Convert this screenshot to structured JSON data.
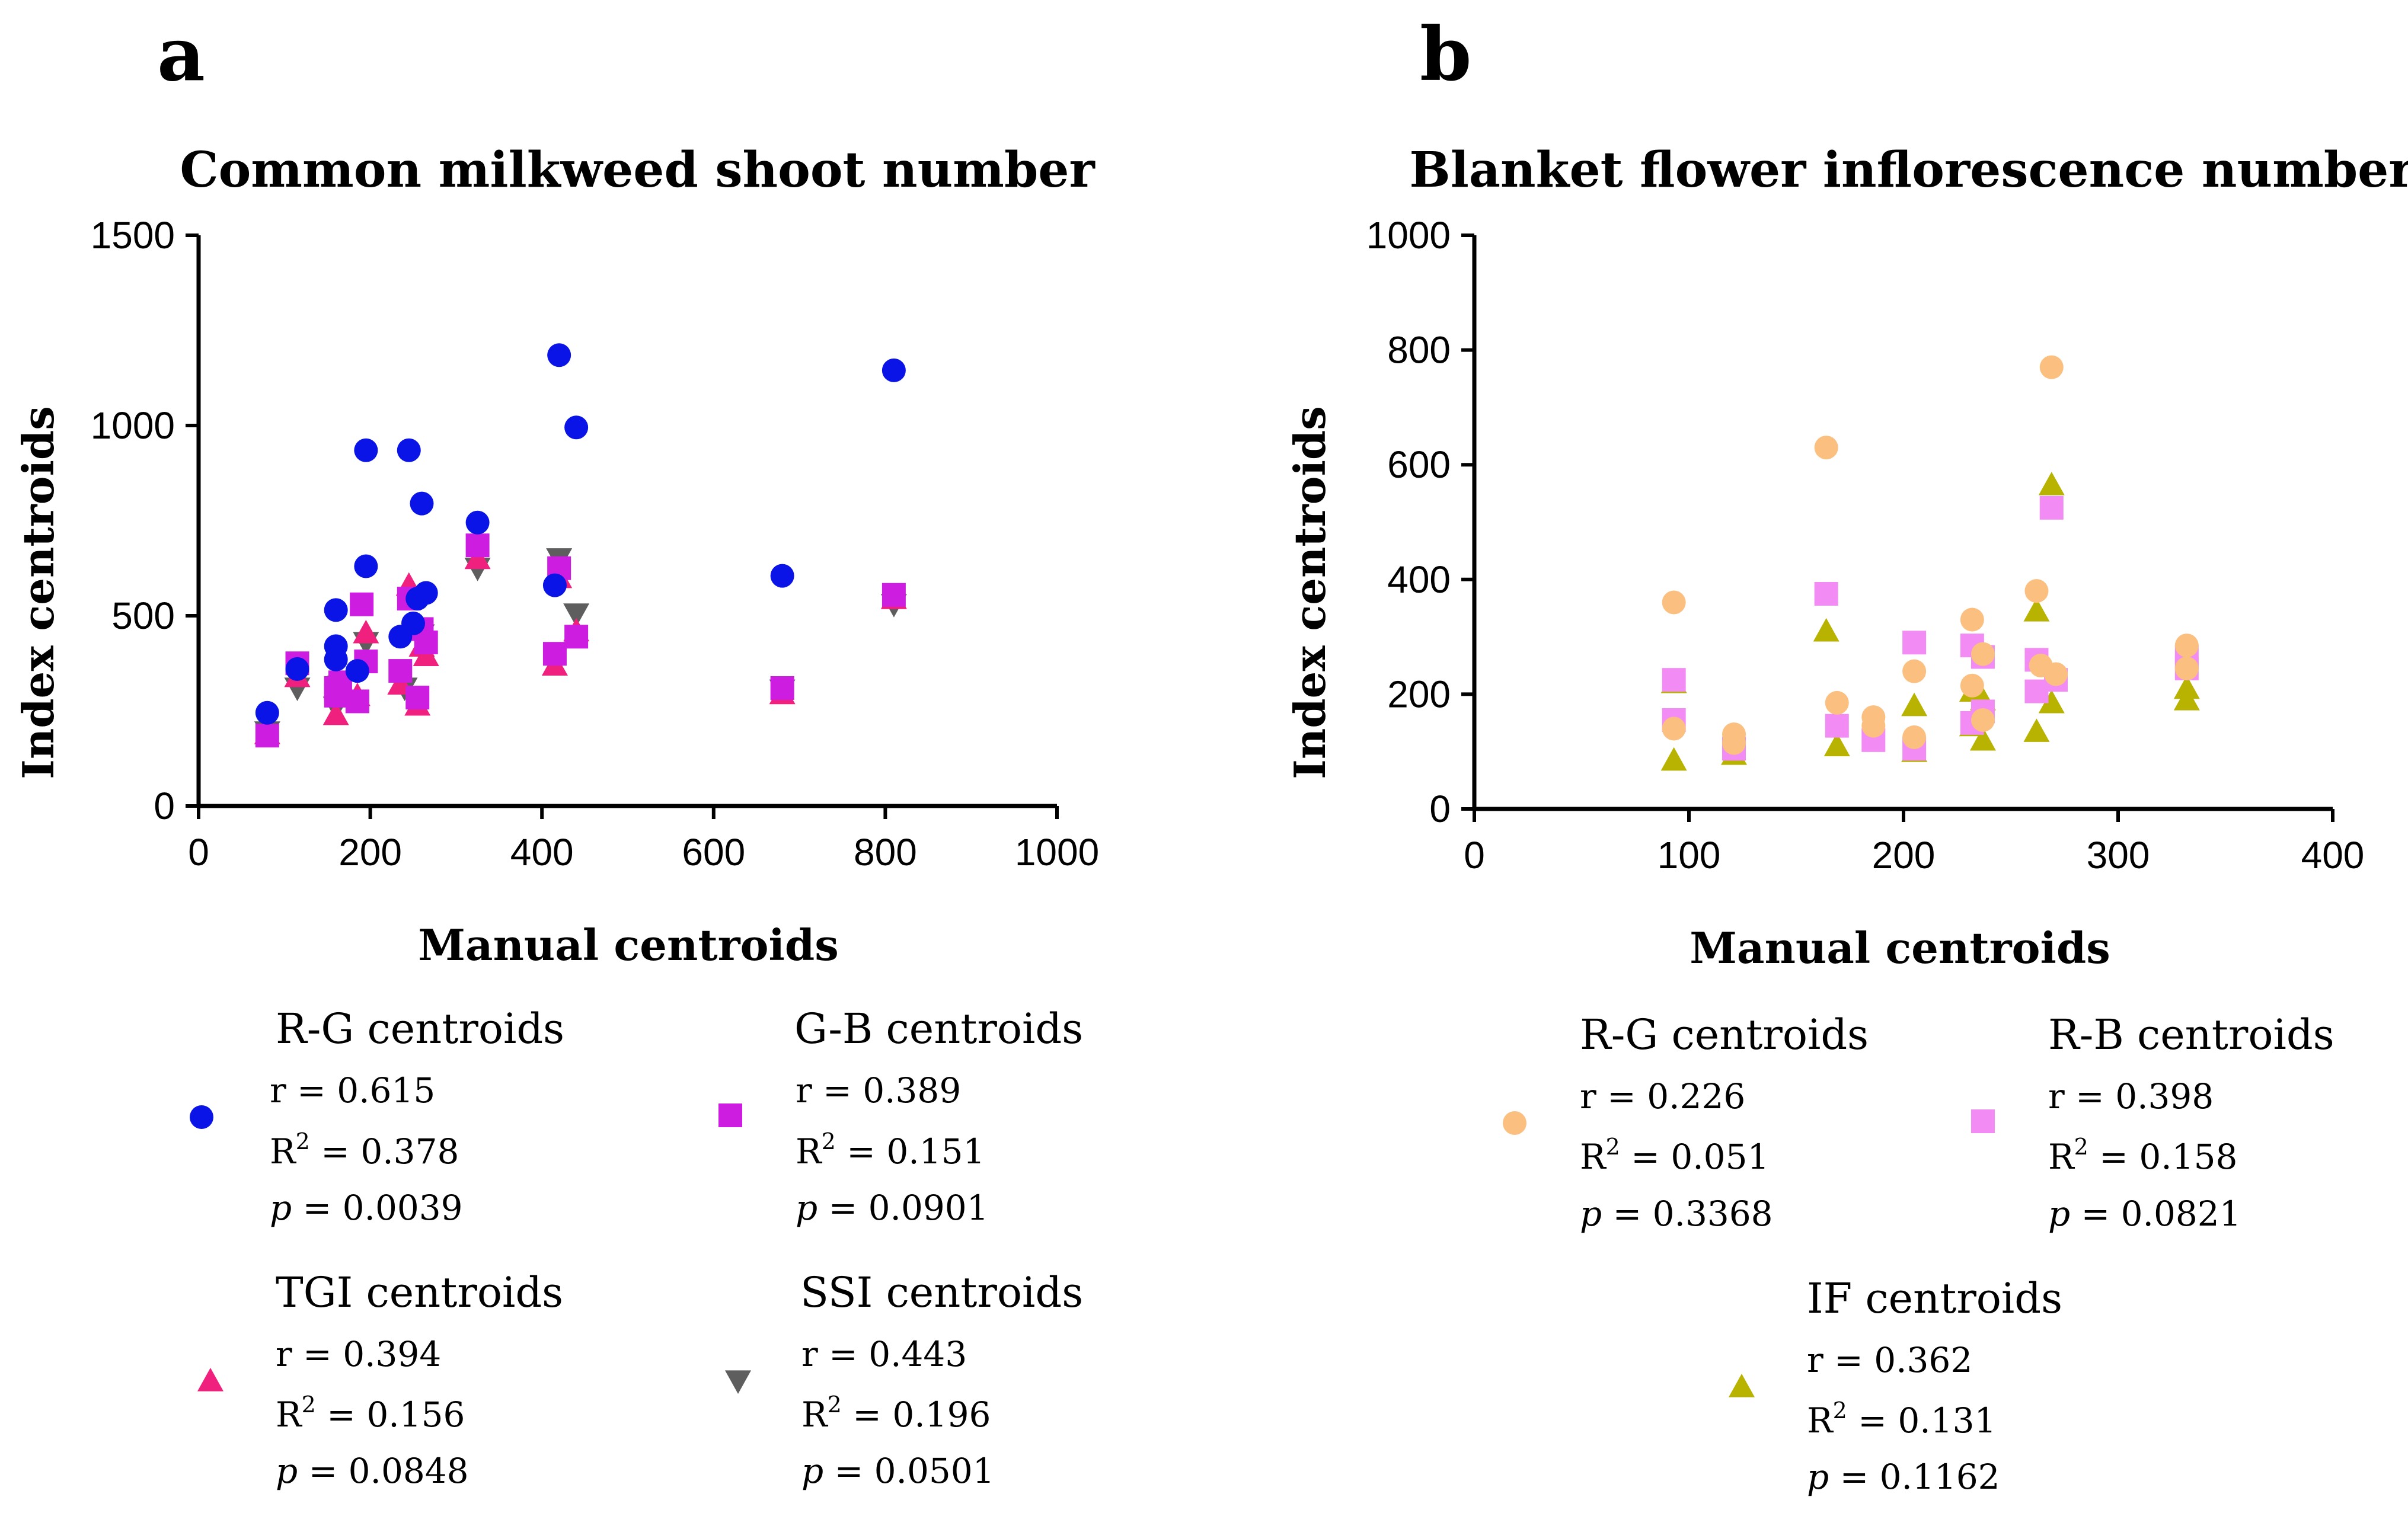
{
  "figure": {
    "panels": [
      "a",
      "b"
    ]
  },
  "chart_data": [
    {
      "panel": "a",
      "type": "scatter",
      "title": "Common milkweed shoot number",
      "xlabel": "Manual centroids",
      "ylabel": "Index centroids",
      "xlim": [
        0,
        1000
      ],
      "ylim": [
        0,
        1500
      ],
      "xticks": [
        0,
        200,
        400,
        600,
        800,
        1000
      ],
      "yticks": [
        0,
        500,
        1000,
        1500
      ],
      "series": [
        {
          "name": "R-G centroids",
          "marker": "circle",
          "color": "#0a14e6",
          "stats": {
            "r": "r  = 0.615",
            "r2_prefix": "R",
            "r2_value": " = 0.378",
            "p_value": "  = 0.0039"
          },
          "points": [
            [
              80,
              245
            ],
            [
              115,
              360
            ],
            [
              160,
              515
            ],
            [
              160,
              420
            ],
            [
              160,
              385
            ],
            [
              185,
              355
            ],
            [
              195,
              630
            ],
            [
              195,
              935
            ],
            [
              235,
              445
            ],
            [
              245,
              935
            ],
            [
              250,
              480
            ],
            [
              255,
              545
            ],
            [
              260,
              795
            ],
            [
              265,
              560
            ],
            [
              325,
              745
            ],
            [
              415,
              580
            ],
            [
              420,
              1185
            ],
            [
              440,
              995
            ],
            [
              680,
              605
            ],
            [
              810,
              1145
            ]
          ]
        },
        {
          "name": "G-B centroids",
          "marker": "square",
          "color": "#cc1de0",
          "stats": {
            "r": "r = 0.389",
            "r2_prefix": "R",
            "r2_value": " = 0.151",
            "p_value": " = 0.0901"
          },
          "points": [
            [
              80,
              185
            ],
            [
              115,
              375
            ],
            [
              160,
              310
            ],
            [
              160,
              290
            ],
            [
              165,
              325
            ],
            [
              185,
              275
            ],
            [
              190,
              530
            ],
            [
              195,
              380
            ],
            [
              235,
              355
            ],
            [
              245,
              545
            ],
            [
              255,
              285
            ],
            [
              260,
              465
            ],
            [
              265,
              430
            ],
            [
              325,
              685
            ],
            [
              415,
              400
            ],
            [
              420,
              625
            ],
            [
              440,
              445
            ],
            [
              680,
              310
            ],
            [
              810,
              555
            ]
          ]
        },
        {
          "name": "TGI centroids",
          "marker": "triangle",
          "color": "#f0207e",
          "stats": {
            "r": "r = 0.394",
            "r2_prefix": "R",
            "r2_value": " = 0.156",
            "p_value": "  = 0.0848"
          },
          "points": [
            [
              80,
              190
            ],
            [
              115,
              340
            ],
            [
              160,
              240
            ],
            [
              165,
              300
            ],
            [
              185,
              290
            ],
            [
              195,
              455
            ],
            [
              235,
              320
            ],
            [
              245,
              580
            ],
            [
              255,
              265
            ],
            [
              260,
              420
            ],
            [
              265,
              395
            ],
            [
              325,
              650
            ],
            [
              415,
              370
            ],
            [
              420,
              600
            ],
            [
              440,
              460
            ],
            [
              680,
              295
            ],
            [
              810,
              545
            ]
          ]
        },
        {
          "name": "SSI centroids",
          "marker": "triangle-down",
          "color": "#5e5e5e",
          "stats": {
            "r": "r  = 0.443",
            "r2_prefix": "R",
            "r2_value": "  = 0.196",
            "p_value": " = 0.0501"
          },
          "points": [
            [
              80,
              195
            ],
            [
              115,
              310
            ],
            [
              160,
              260
            ],
            [
              165,
              315
            ],
            [
              195,
              430
            ],
            [
              240,
              310
            ],
            [
              260,
              450
            ],
            [
              325,
              625
            ],
            [
              420,
              650
            ],
            [
              440,
              505
            ],
            [
              680,
              305
            ],
            [
              810,
              530
            ]
          ]
        }
      ]
    },
    {
      "panel": "b",
      "type": "scatter",
      "title": "Blanket flower inflorescence number",
      "xlabel": "Manual centroids",
      "ylabel": "Index centroids",
      "xlim": [
        0,
        400
      ],
      "ylim": [
        0,
        1000
      ],
      "xticks": [
        0,
        100,
        200,
        300,
        400
      ],
      "yticks": [
        0,
        200,
        400,
        600,
        800,
        1000
      ],
      "series": [
        {
          "name": "R-G centroids",
          "marker": "circle",
          "color": "#fbbf80",
          "stats": {
            "r": "r  = 0.226",
            "r2_prefix": "R",
            "r2_value": " = 0.051",
            "p_value": " = 0.3368"
          },
          "points": [
            [
              93,
              360
            ],
            [
              93,
              140
            ],
            [
              121,
              130
            ],
            [
              121,
              115
            ],
            [
              164,
              630
            ],
            [
              169,
              185
            ],
            [
              186,
              160
            ],
            [
              186,
              145
            ],
            [
              205,
              240
            ],
            [
              205,
              125
            ],
            [
              232,
              330
            ],
            [
              232,
              215
            ],
            [
              237,
              270
            ],
            [
              237,
              155
            ],
            [
              262,
              380
            ],
            [
              264,
              250
            ],
            [
              269,
              770
            ],
            [
              271,
              235
            ],
            [
              332,
              285
            ],
            [
              332,
              245
            ]
          ]
        },
        {
          "name": "R-B centroids",
          "marker": "square",
          "color": "#f28cf4",
          "stats": {
            "r": "r = 0.398",
            "r2_prefix": "R",
            "r2_value": " = 0.158",
            "p_value": " = 0.0821"
          },
          "points": [
            [
              93,
              225
            ],
            [
              93,
              155
            ],
            [
              121,
              105
            ],
            [
              164,
              375
            ],
            [
              169,
              145
            ],
            [
              186,
              120
            ],
            [
              205,
              290
            ],
            [
              205,
              105
            ],
            [
              232,
              285
            ],
            [
              232,
              150
            ],
            [
              237,
              265
            ],
            [
              237,
              170
            ],
            [
              262,
              260
            ],
            [
              262,
              205
            ],
            [
              269,
              525
            ],
            [
              271,
              225
            ],
            [
              332,
              265
            ],
            [
              332,
              245
            ]
          ]
        },
        {
          "name": "IF centroids",
          "marker": "triangle",
          "color": "#b7b300",
          "stats": {
            "r": "r = 0.362",
            "r2_prefix": "R",
            "r2_value": " = 0.131",
            "p_value": " = 0.1162"
          },
          "points": [
            [
              93,
              220
            ],
            [
              93,
              85
            ],
            [
              121,
              95
            ],
            [
              164,
              310
            ],
            [
              169,
              110
            ],
            [
              205,
              180
            ],
            [
              205,
              100
            ],
            [
              232,
              205
            ],
            [
              232,
              145
            ],
            [
              237,
              190
            ],
            [
              237,
              120
            ],
            [
              262,
              345
            ],
            [
              262,
              135
            ],
            [
              269,
              565
            ],
            [
              269,
              185
            ],
            [
              332,
              210
            ],
            [
              332,
              190
            ]
          ]
        }
      ]
    }
  ]
}
